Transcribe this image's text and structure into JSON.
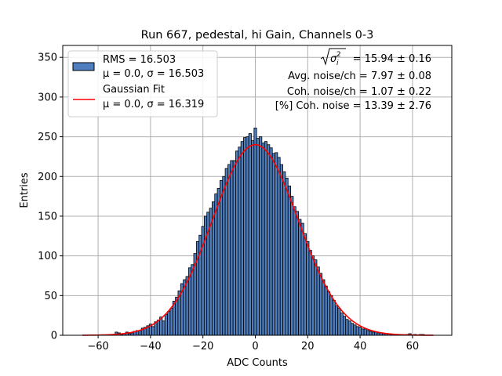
{
  "chart_data": {
    "type": "bar",
    "title": "Run 667, pedestal, hi Gain, Channels 0-3",
    "xlabel": "ADC Counts",
    "ylabel": "Entries",
    "xlim": [
      -73.5,
      75
    ],
    "ylim": [
      0,
      365
    ],
    "grid": true,
    "legend_position": "top-left",
    "x_ticks": [
      -60,
      -40,
      -20,
      0,
      20,
      40,
      60
    ],
    "x_tick_labels": [
      "−60",
      "−40",
      "−20",
      "0",
      "20",
      "40",
      "60"
    ],
    "y_ticks": [
      0,
      50,
      100,
      150,
      200,
      250,
      300,
      350
    ],
    "y_tick_labels": [
      "0",
      "50",
      "100",
      "150",
      "200",
      "250",
      "300",
      "350"
    ],
    "legend": [
      {
        "line1": "RMS = 16.503",
        "line2": "μ = 0.0, σ = 16.503"
      },
      {
        "line1": "Gaussian Fit",
        "line2": "μ = 0.0, σ = 16.319"
      }
    ],
    "annotations": {
      "total_noise_value": "= 15.94 ± 0.16",
      "avg_noise": "Avg. noise/ch = 7.97 ± 0.08",
      "coh_noise": "Coh. noise/ch = 1.07 ± 0.22",
      "coh_noise_pct": "[%] Coh. noise = 13.39 ± 2.76"
    },
    "histogram": {
      "bin_width": 1,
      "x": [
        -54,
        -53,
        -52,
        -51,
        -50,
        -49,
        -48,
        -47,
        -46,
        -45,
        -44,
        -43,
        -42,
        -41,
        -40,
        -39,
        -38,
        -37,
        -36,
        -35,
        -34,
        -33,
        -32,
        -31,
        -30,
        -29,
        -28,
        -27,
        -26,
        -25,
        -24,
        -23,
        -22,
        -21,
        -20,
        -19,
        -18,
        -17,
        -16,
        -15,
        -14,
        -13,
        -12,
        -11,
        -10,
        -9,
        -8,
        -7,
        -6,
        -5,
        -4,
        -3,
        -2,
        -1,
        0,
        1,
        2,
        3,
        4,
        5,
        6,
        7,
        8,
        9,
        10,
        11,
        12,
        13,
        14,
        15,
        16,
        17,
        18,
        19,
        20,
        21,
        22,
        23,
        24,
        25,
        26,
        27,
        28,
        29,
        30,
        31,
        32,
        33,
        34,
        35,
        36,
        37,
        38,
        39,
        40,
        41,
        42,
        43,
        44,
        45,
        46,
        47,
        48,
        49,
        50,
        51,
        52,
        53,
        54,
        55,
        56,
        57,
        58,
        59,
        60,
        61,
        62,
        63,
        64
      ],
      "values": [
        1,
        4,
        3,
        1,
        2,
        4,
        2,
        3,
        5,
        6,
        6,
        9,
        10,
        12,
        14,
        11,
        17,
        19,
        23,
        18,
        26,
        30,
        34,
        43,
        48,
        56,
        65,
        70,
        74,
        85,
        89,
        103,
        118,
        126,
        137,
        150,
        155,
        160,
        168,
        178,
        185,
        195,
        200,
        210,
        215,
        220,
        220,
        232,
        237,
        244,
        249,
        250,
        254,
        245,
        261,
        248,
        250,
        242,
        244,
        240,
        236,
        229,
        230,
        224,
        215,
        206,
        198,
        188,
        175,
        162,
        156,
        146,
        141,
        128,
        118,
        107,
        100,
        95,
        86,
        78,
        70,
        62,
        55,
        50,
        44,
        37,
        34,
        28,
        24,
        20,
        18,
        15,
        13,
        11,
        10,
        8,
        8,
        6,
        5,
        4,
        4,
        3,
        3,
        2,
        2,
        2,
        1,
        1,
        1,
        1,
        1,
        0,
        1,
        2,
        0,
        1,
        0,
        1,
        1
      ]
    },
    "fit": {
      "name": "Gaussian Fit",
      "mu": 0.0,
      "sigma": 16.319,
      "amplitude": 240,
      "x_range": [
        -66,
        68
      ]
    },
    "colors": {
      "bar_fill": "#4f7fbf",
      "bar_edge": "#000000",
      "fit_line": "#ff0000",
      "grid": "#b0b0b0"
    }
  }
}
